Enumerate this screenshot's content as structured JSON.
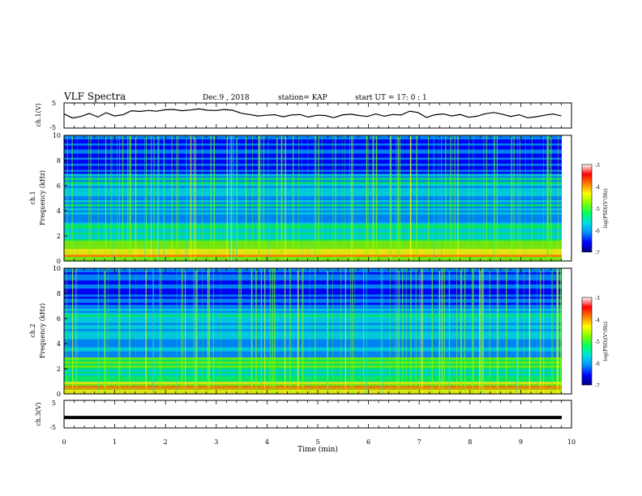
{
  "header": {
    "title": "VLF Spectra",
    "date": "Dec.9 , 2018",
    "station": "station= KAP",
    "start": "start  UT =   17: 0  : 1"
  },
  "chart_data": [
    {
      "type": "line",
      "name_panel": "ch1-waveform",
      "ylabel": "ch.1(V)",
      "ylim": [
        -5,
        5
      ],
      "yticks": [
        "5",
        "-5"
      ],
      "x_range_min": [
        0,
        9.8
      ],
      "samples": [
        0.6,
        -1.0,
        -0.4,
        0.8,
        -0.6,
        1.1,
        -0.2,
        0.3,
        1.9,
        1.6,
        2.0,
        1.7,
        2.3,
        2.4,
        1.9,
        2.2,
        2.6,
        2.1,
        2.0,
        2.4,
        2.1,
        0.9,
        0.4,
        -0.2,
        0.1,
        0.3,
        -0.5,
        0.2,
        0.4,
        -0.6,
        0.1,
        0.0,
        -0.9,
        0.2,
        0.5,
        0.0,
        -0.4,
        0.6,
        -0.3,
        0.4,
        0.2,
        1.7,
        1.2,
        -0.8,
        0.3,
        0.6,
        -0.2,
        0.4,
        -0.7,
        -0.3,
        0.7,
        1.2,
        0.5,
        -0.4,
        0.3,
        -0.9,
        -0.5,
        0.1,
        0.6,
        -0.2
      ]
    },
    {
      "type": "heatmap",
      "panel": "ch1-spectrogram",
      "ylabel": "ch.1\nFrequency (kHz)",
      "ylim": [
        0,
        10
      ],
      "yticks": [
        "0",
        "2",
        "4",
        "6",
        "8",
        "10"
      ],
      "colorbar": {
        "label": "log(PSD)(V²/Hz)",
        "range": [
          -7,
          -3
        ],
        "ticks": [
          "-3",
          "-4",
          "-5",
          "-6",
          "-7"
        ]
      }
    },
    {
      "type": "heatmap",
      "panel": "ch2-spectrogram",
      "ylabel": "ch.2\nFrequency (kHz)",
      "ylim": [
        0,
        10
      ],
      "yticks": [
        "0",
        "2",
        "4",
        "6",
        "8",
        "10"
      ],
      "colorbar": {
        "label": "log(PSD)(V²/Hz)",
        "range": [
          -7,
          -3
        ],
        "ticks": [
          "-3",
          "-4",
          "-5",
          "-6",
          "-7"
        ]
      }
    },
    {
      "type": "line",
      "panel": "ch3-waveform",
      "ylabel": "ch.3(V)",
      "ylim": [
        -5,
        5
      ],
      "yticks": [
        "5",
        "-5"
      ],
      "constant_value": -1.2
    }
  ],
  "xaxis": {
    "label": "Time  (min)",
    "range": [
      0,
      10
    ],
    "ticks": [
      "0",
      "1",
      "2",
      "3",
      "4",
      "5",
      "6",
      "7",
      "8",
      "9",
      "10"
    ]
  },
  "colors": {
    "colormap": [
      "#000080",
      "#0000ff",
      "#0090ff",
      "#00e0e0",
      "#00ff60",
      "#80ff00",
      "#ffff00",
      "#ff8000",
      "#ff0000",
      "#ffffff"
    ]
  }
}
